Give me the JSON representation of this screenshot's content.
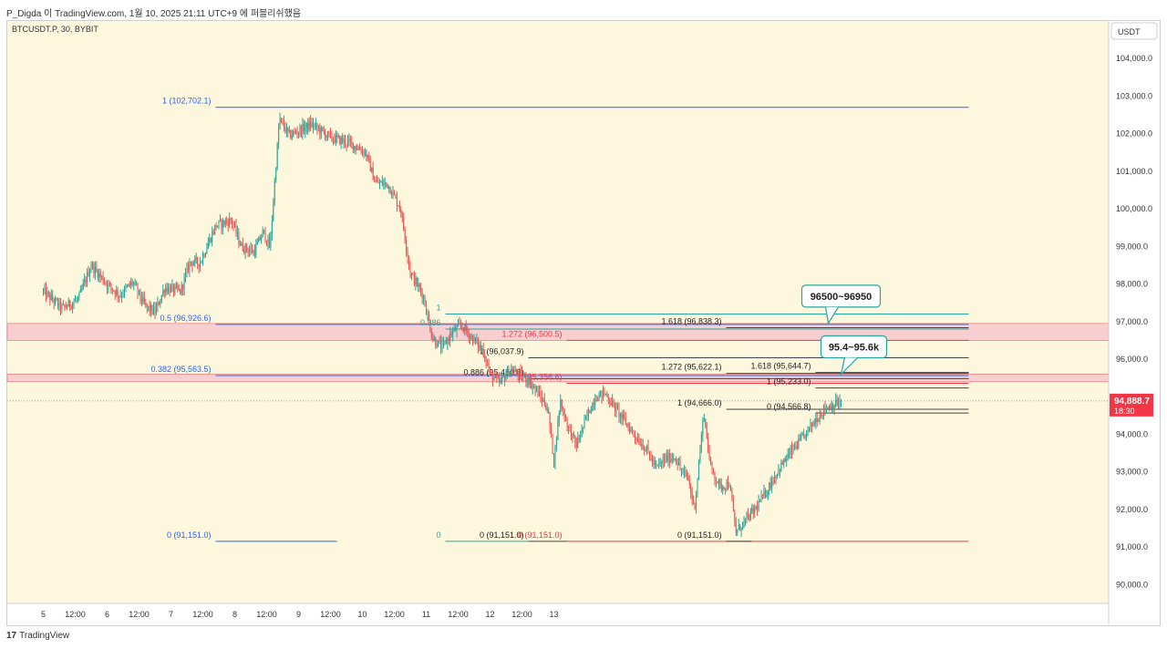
{
  "header": {
    "caption": "P_Digda 이 TradingView.com, 1월 10, 2025 21:11 UTC+9 에 퍼블리쉬했음"
  },
  "footer": {
    "logo": "17",
    "brand": "TradingView"
  },
  "colors": {
    "background": "#fdf7dd",
    "up": "#26a69a",
    "down": "#ef5350",
    "fib_blue": "#2962ff",
    "fib_red": "#f23645",
    "zone_fill": "#f7c9ce",
    "zone_edge": "#e57373",
    "price_badge": "#f23645",
    "callout_border": "#26a69a"
  },
  "chart_data": {
    "type": "candlestick",
    "symbol_label": "BTCUSDT.P, 30, BYBIT",
    "currency_label": "USDT",
    "y_axis": {
      "range": [
        89500,
        105000
      ],
      "ticks": [
        "104,000.0",
        "103,000.0",
        "102,000.0",
        "101,000.0",
        "100,000.0",
        "99,000.0",
        "98,000.0",
        "97,000.0",
        "96,000.0",
        "95,000.0",
        "94,000.0",
        "93,000.0",
        "92,000.0",
        "91,000.0",
        "90,000.0"
      ]
    },
    "x_axis": {
      "tick_labels": [
        "5",
        "12:00",
        "6",
        "12:00",
        "7",
        "12:00",
        "8",
        "12:00",
        "9",
        "12:00",
        "10",
        "12:00",
        "11",
        "12:00",
        "12",
        "12:00",
        "13"
      ]
    },
    "last_price": {
      "value": "94,888.7",
      "countdown": "18:30"
    },
    "price_path": [
      [
        0.0,
        97800
      ],
      [
        0.3,
        97350
      ],
      [
        0.55,
        97600
      ],
      [
        0.75,
        98500
      ],
      [
        1.0,
        98000
      ],
      [
        1.2,
        97700
      ],
      [
        1.4,
        98050
      ],
      [
        1.6,
        97400
      ],
      [
        1.75,
        97250
      ],
      [
        1.9,
        97900
      ],
      [
        2.15,
        97800
      ],
      [
        2.3,
        98600
      ],
      [
        2.45,
        98550
      ],
      [
        2.7,
        99550
      ],
      [
        2.95,
        99700
      ],
      [
        3.1,
        99000
      ],
      [
        3.3,
        98850
      ],
      [
        3.45,
        99400
      ],
      [
        3.55,
        98950
      ],
      [
        3.62,
        100600
      ],
      [
        3.7,
        102400
      ],
      [
        3.85,
        101950
      ],
      [
        4.2,
        102250
      ],
      [
        4.5,
        101900
      ],
      [
        4.8,
        101750
      ],
      [
        5.05,
        101500
      ],
      [
        5.2,
        100700
      ],
      [
        5.4,
        100650
      ],
      [
        5.6,
        100000
      ],
      [
        5.75,
        98300
      ],
      [
        5.95,
        97700
      ],
      [
        6.1,
        96550
      ],
      [
        6.25,
        96300
      ],
      [
        6.4,
        96700
      ],
      [
        6.55,
        96900
      ],
      [
        6.75,
        96500
      ],
      [
        6.9,
        96200
      ],
      [
        7.0,
        95600
      ],
      [
        7.15,
        95350
      ],
      [
        7.3,
        95700
      ],
      [
        7.45,
        95600
      ],
      [
        7.6,
        95450
      ],
      [
        7.75,
        95100
      ],
      [
        7.9,
        94700
      ],
      [
        8.0,
        93300
      ],
      [
        8.1,
        94900
      ],
      [
        8.2,
        94300
      ],
      [
        8.35,
        93700
      ],
      [
        8.5,
        94400
      ],
      [
        8.65,
        95000
      ],
      [
        8.8,
        95100
      ],
      [
        9.0,
        94600
      ],
      [
        9.15,
        94250
      ],
      [
        9.3,
        93900
      ],
      [
        9.45,
        93600
      ],
      [
        9.6,
        93100
      ],
      [
        9.75,
        93350
      ],
      [
        9.9,
        93400
      ],
      [
        10.0,
        93000
      ],
      [
        10.1,
        92850
      ],
      [
        10.2,
        92000
      ],
      [
        10.35,
        94600
      ],
      [
        10.45,
        93150
      ],
      [
        10.6,
        92600
      ],
      [
        10.75,
        92700
      ],
      [
        10.85,
        91400
      ],
      [
        11.0,
        91700
      ],
      [
        11.15,
        92000
      ],
      [
        11.3,
        92400
      ],
      [
        11.5,
        93000
      ],
      [
        11.7,
        93500
      ],
      [
        11.9,
        93900
      ],
      [
        12.1,
        94400
      ],
      [
        12.25,
        94700
      ],
      [
        12.4,
        94800
      ],
      [
        12.5,
        94888.7
      ]
    ],
    "fib_levels": [
      {
        "label": "1 (102,702.1)",
        "price": 102702.1,
        "x0": 2.7,
        "x1": 14.5,
        "color": "#2962ff",
        "label_color": "#2962ff"
      },
      {
        "label": "0.5 (96,926.6)",
        "price": 96926.6,
        "x0": 2.7,
        "x1": 14.5,
        "color": "#2962ff",
        "label_color": "#2962ff"
      },
      {
        "label": "0.382 (95,563.5)",
        "price": 95563.5,
        "x0": 2.7,
        "x1": 14.5,
        "color": "#2962ff",
        "label_color": "#2962ff"
      },
      {
        "label": "0 (91,151.0)",
        "price": 91151.0,
        "x0": 2.7,
        "x1": 4.6,
        "color": "#2962ff",
        "label_color": "#2962ff"
      },
      {
        "label": "1",
        "price": 97200,
        "x0": 6.3,
        "x1": 14.5,
        "color": "#26a69a",
        "label_color": "#26a69a"
      },
      {
        "label": "0.886",
        "price": 96800,
        "x0": 6.3,
        "x1": 14.5,
        "color": "#26a69a",
        "label_color": "#26a69a"
      },
      {
        "label": "0",
        "price": 91151.0,
        "x0": 6.3,
        "x1": 7.6,
        "color": "#26a69a",
        "label_color": "#26a69a"
      },
      {
        "label": "1 (96,037.9)",
        "price": 96037.9,
        "x0": 7.6,
        "x1": 14.5,
        "color": "#444444",
        "label_color": "#222222"
      },
      {
        "label": "0.886 (95,480.8)",
        "price": 95480.8,
        "x0": 7.6,
        "x1": 14.5,
        "color": "#444444",
        "label_color": "#222222"
      },
      {
        "label": "0 (91,151.0)",
        "price": 91151.0,
        "x0": 7.6,
        "x1": 8.2,
        "color": "#444444",
        "label_color": "#222222"
      },
      {
        "label": "1.272 (96,500.5)",
        "price": 96500.5,
        "x0": 8.2,
        "x1": 14.5,
        "color": "#f23645",
        "label_color": "#f23645"
      },
      {
        "label": "1 (95,356.6)",
        "price": 95356.6,
        "x0": 8.2,
        "x1": 14.5,
        "color": "#f23645",
        "label_color": "#f23645"
      },
      {
        "label": "0 (91,151.0)",
        "price": 91151.0,
        "x0": 8.2,
        "x1": 14.5,
        "color": "#f23645",
        "label_color": "#f23645"
      },
      {
        "label": "1.618 (96,838.3)",
        "price": 96838.3,
        "x0": 10.7,
        "x1": 14.5,
        "color": "#444444",
        "label_color": "#222222"
      },
      {
        "label": "1.272 (95,622.1)",
        "price": 95622.1,
        "x0": 10.7,
        "x1": 14.5,
        "color": "#444444",
        "label_color": "#222222"
      },
      {
        "label": "1 (94,666.0)",
        "price": 94666.0,
        "x0": 10.7,
        "x1": 14.5,
        "color": "#444444",
        "label_color": "#222222"
      },
      {
        "label": "0 (91,151.0)",
        "price": 91151.0,
        "x0": 10.7,
        "x1": 11.1,
        "color": "#444444",
        "label_color": "#222222"
      },
      {
        "label": "1.618 (95,644.7)",
        "price": 95644.7,
        "x0": 12.1,
        "x1": 14.5,
        "color": "#444444",
        "label_color": "#222222"
      },
      {
        "label": "1 (95,233.0)",
        "price": 95233.0,
        "x0": 12.1,
        "x1": 14.5,
        "color": "#444444",
        "label_color": "#222222"
      },
      {
        "label": "0 (94,566.8)",
        "price": 94566.8,
        "x0": 12.1,
        "x1": 14.5,
        "color": "#444444",
        "label_color": "#222222"
      }
    ],
    "zones": [
      {
        "from": 96500,
        "to": 96950
      },
      {
        "from": 95400,
        "to": 95600
      }
    ],
    "callouts": [
      {
        "text": "96500~96950",
        "anchor_x": 12.3,
        "anchor_price": 96950
      },
      {
        "text": "95.4~95.6k",
        "anchor_x": 12.5,
        "anchor_price": 95600
      }
    ]
  }
}
